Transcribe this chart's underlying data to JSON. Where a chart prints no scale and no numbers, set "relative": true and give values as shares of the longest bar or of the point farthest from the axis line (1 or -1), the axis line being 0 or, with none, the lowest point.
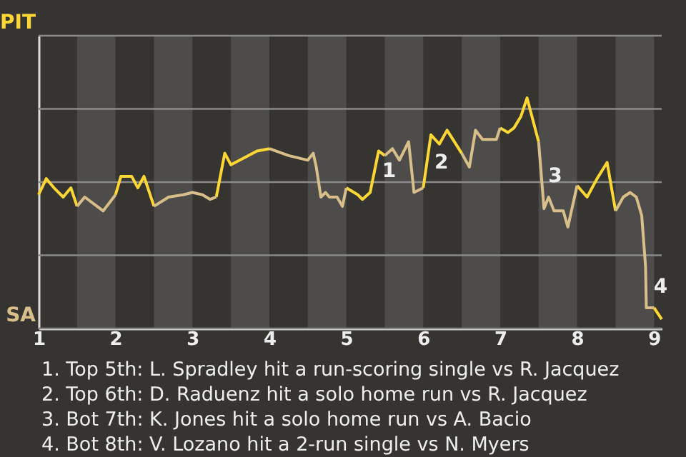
{
  "chart_data": {
    "type": "line",
    "relative": true,
    "x": [
      1,
      1.1,
      1.2,
      1.32,
      1.42,
      1.5,
      1.6,
      1.84,
      2,
      2.07,
      2.21,
      2.29,
      2.37,
      2.5,
      2.69,
      2.88,
      3,
      3.13,
      3.23,
      3.31,
      3.42,
      3.5,
      3.84,
      4,
      4.25,
      4.5,
      4.57,
      4.61,
      4.67,
      4.73,
      4.78,
      4.88,
      4.95,
      5,
      5.15,
      5.21,
      5.31,
      5.42,
      5.5,
      5.6,
      5.69,
      5.81,
      5.88,
      6,
      6.1,
      6.21,
      6.31,
      6.5,
      6.6,
      6.68,
      6.77,
      6.95,
      7,
      7.1,
      7.18,
      7.27,
      7.35,
      7.5,
      7.57,
      7.63,
      7.7,
      7.82,
      7.88,
      8,
      8.13,
      8.26,
      8.39,
      8.5,
      8.6,
      8.69,
      8.77,
      8.84,
      8.89,
      8.9,
      9,
      9.1
    ],
    "series": [
      {
        "color": "#fcd734",
        "values": [
          0.58,
          0.65,
          0.61,
          0.57,
          0.61,
          0.53,
          null,
          null,
          0.58,
          0.66,
          0.66,
          0.61,
          0.66,
          0.53,
          null,
          null,
          null,
          null,
          null,
          0.57,
          0.76,
          0.71,
          0.77,
          0.78,
          null,
          null,
          null,
          null,
          null,
          null,
          null,
          null,
          null,
          0.61,
          0.58,
          0.56,
          0.59,
          0.77,
          0.75,
          null,
          null,
          null,
          null,
          0.61,
          0.84,
          0.8,
          0.86,
          0.76,
          null,
          null,
          null,
          null,
          0.87,
          0.85,
          0.87,
          0.92,
          1,
          0.81,
          null,
          null,
          null,
          null,
          null,
          0.62,
          0.57,
          0.65,
          0.72,
          0.51,
          null,
          null,
          null,
          null,
          null,
          null,
          0.09,
          0.04
        ]
      },
      {
        "color": "#d8bf8a",
        "values": [
          null,
          null,
          null,
          null,
          null,
          0.53,
          0.57,
          0.51,
          0.58,
          null,
          null,
          null,
          null,
          0.53,
          0.57,
          0.58,
          0.59,
          0.58,
          0.56,
          0.57,
          null,
          null,
          null,
          0.78,
          0.75,
          0.73,
          0.76,
          0.7,
          0.57,
          0.59,
          0.57,
          0.57,
          0.53,
          0.61,
          null,
          null,
          null,
          null,
          0.75,
          0.78,
          0.73,
          0.81,
          0.59,
          0.61,
          null,
          null,
          null,
          0.76,
          0.7,
          0.86,
          0.82,
          0.82,
          0.87,
          null,
          null,
          null,
          null,
          0.81,
          0.52,
          0.57,
          0.51,
          0.51,
          0.44,
          0.62,
          null,
          null,
          null,
          0.51,
          0.57,
          0.59,
          0.57,
          0.49,
          0.27,
          0.09,
          0.09,
          null
        ]
      }
    ],
    "xlim": [
      1,
      9.1
    ],
    "xticks": [
      1,
      2,
      3,
      4,
      5,
      6,
      7,
      8,
      9
    ],
    "grid": "y",
    "bands": [
      {
        "axis": "x",
        "from": 1.5,
        "to": 2,
        "color": "#4d4c4a"
      },
      {
        "axis": "x",
        "from": 2.5,
        "to": 3,
        "color": "#4d4c4a"
      },
      {
        "axis": "x",
        "from": 3.5,
        "to": 4,
        "color": "#4d4c4a"
      },
      {
        "axis": "x",
        "from": 4.5,
        "to": 5,
        "color": "#4d4c4a"
      },
      {
        "axis": "x",
        "from": 5.5,
        "to": 6,
        "color": "#4d4c4a"
      },
      {
        "axis": "x",
        "from": 6.5,
        "to": 7,
        "color": "#4d4c4a"
      },
      {
        "axis": "x",
        "from": 7.5,
        "to": 8,
        "color": "#4d4c4a"
      },
      {
        "axis": "x",
        "from": 8.5,
        "to": 9,
        "color": "#4d4c4a"
      }
    ],
    "annotations": [
      "PIT",
      "SA",
      {
        "text": "1",
        "x": 5.37,
        "y": 0.68
      },
      {
        "text": "2",
        "x": 6.05,
        "y": 0.72
      },
      {
        "text": "3",
        "x": 7.53,
        "y": 0.66
      },
      {
        "text": "4",
        "x": 8.9,
        "y": 0.18
      },
      "1. Top 5th: L. Spradley hit a run-scoring single vs R. Jacquez",
      "2. Top 6th: D. Raduenz hit a solo home run vs R. Jacquez",
      "3. Bot 7th: K. Jones hit a solo home run vs A. Bacio",
      "4. Bot 8th: V. Lozano hit a 2-run single vs N. Myers"
    ]
  }
}
